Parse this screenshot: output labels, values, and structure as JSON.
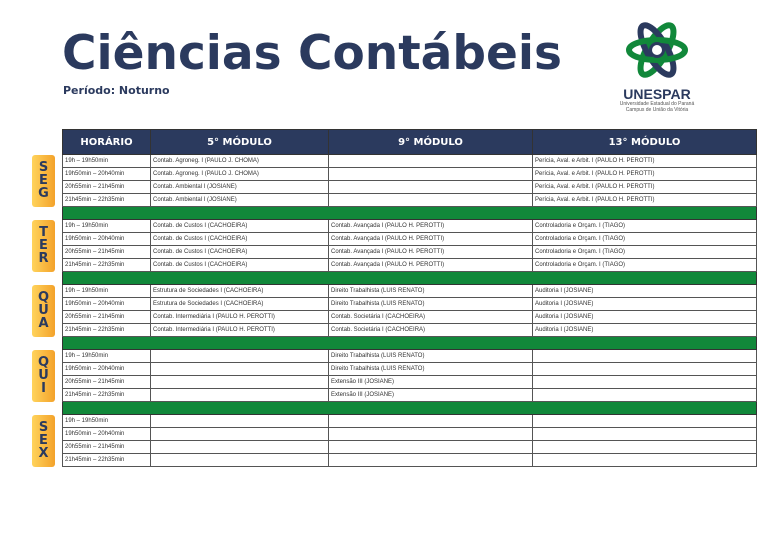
{
  "title": "Ciências Contábeis",
  "subtitle": "Período: Noturno",
  "logo": {
    "name": "UNESPAR",
    "line1": "Universidade Estadual do Paraná",
    "line2": "Campus de União da Vitória",
    "colors": [
      "#2b3a5e",
      "#11883a"
    ]
  },
  "colors": {
    "header": "#2b3a5e",
    "separator": "#11883a",
    "day_label": "#f3a22a"
  },
  "headers": [
    "HORÁRIO",
    "5° MÓDULO",
    "9° MÓDULO",
    "13° MÓDULO"
  ],
  "days": [
    {
      "label": "SEG",
      "rows": [
        [
          "19h – 19h50min",
          "Contab. Agroneg. I (PAULO J. CHOMA)",
          "",
          "Perícia, Aval. e Arbit. I (PAULO H. PEROTTI)"
        ],
        [
          "19h50min – 20h40min",
          "Contab. Agroneg. I (PAULO J. CHOMA)",
          "",
          "Perícia, Aval. e Arbit. I (PAULO H. PEROTTI)"
        ],
        [
          "20h55min – 21h45min",
          "Contab. Ambiental I (JOSIANE)",
          "",
          "Perícia, Aval. e Arbit. I (PAULO H. PEROTTI)"
        ],
        [
          "21h45min – 22h35min",
          "Contab. Ambiental I (JOSIANE)",
          "",
          "Perícia, Aval. e Arbit. I (PAULO H. PEROTTI)"
        ]
      ]
    },
    {
      "label": "TER",
      "rows": [
        [
          "19h – 19h50min",
          "Contab. de Custos I (CACHOEIRA)",
          "Contab. Avançada I (PAULO H. PEROTTI)",
          "Controladoria e Orçam. I (TIAGO)"
        ],
        [
          "19h50min – 20h40min",
          "Contab. de Custos I (CACHOEIRA)",
          "Contab. Avançada I (PAULO H. PEROTTI)",
          "Controladoria e Orçam. I (TIAGO)"
        ],
        [
          "20h55min – 21h45min",
          "Contab. de Custos I (CACHOEIRA)",
          "Contab. Avançada I (PAULO H. PEROTTI)",
          "Controladoria e Orçam. I (TIAGO)"
        ],
        [
          "21h45min – 22h35min",
          "Contab. de Custos I (CACHOEIRA)",
          "Contab. Avançada I (PAULO H. PEROTTI)",
          "Controladoria e Orçam. I (TIAGO)"
        ]
      ]
    },
    {
      "label": "QUA",
      "rows": [
        [
          "19h – 19h50min",
          "Estrutura de Sociedades I (CACHOEIRA)",
          "Direito Trabalhista (LUIS RENATO)",
          "Auditoria I (JOSIANE)"
        ],
        [
          "19h50min – 20h40min",
          "Estrutura de Sociedades I (CACHOEIRA)",
          "Direito Trabalhista (LUIS RENATO)",
          "Auditoria I (JOSIANE)"
        ],
        [
          "20h55min – 21h45min",
          "Contab. Intermediária I (PAULO H. PEROTTI)",
          "Contab. Societária I (CACHOEIRA)",
          "Auditoria I (JOSIANE)"
        ],
        [
          "21h45min – 22h35min",
          "Contab. Intermediária I (PAULO H. PEROTTI)",
          "Contab. Societária I (CACHOEIRA)",
          "Auditoria I (JOSIANE)"
        ]
      ]
    },
    {
      "label": "QUI",
      "rows": [
        [
          "19h – 19h50min",
          "",
          "Direito Trabalhista (LUIS RENATO)",
          ""
        ],
        [
          "19h50min – 20h40min",
          "",
          "Direito Trabalhista (LUIS RENATO)",
          ""
        ],
        [
          "20h55min – 21h45min",
          "",
          "Extensão III (JOSIANE)",
          ""
        ],
        [
          "21h45min – 22h35min",
          "",
          "Extensão III (JOSIANE)",
          ""
        ]
      ]
    },
    {
      "label": "SEX",
      "rows": [
        [
          "19h – 19h50min",
          "",
          "",
          ""
        ],
        [
          "19h50min – 20h40min",
          "",
          "",
          ""
        ],
        [
          "20h55min – 21h45min",
          "",
          "",
          ""
        ],
        [
          "21h45min – 22h35min",
          "",
          "",
          ""
        ]
      ]
    }
  ]
}
